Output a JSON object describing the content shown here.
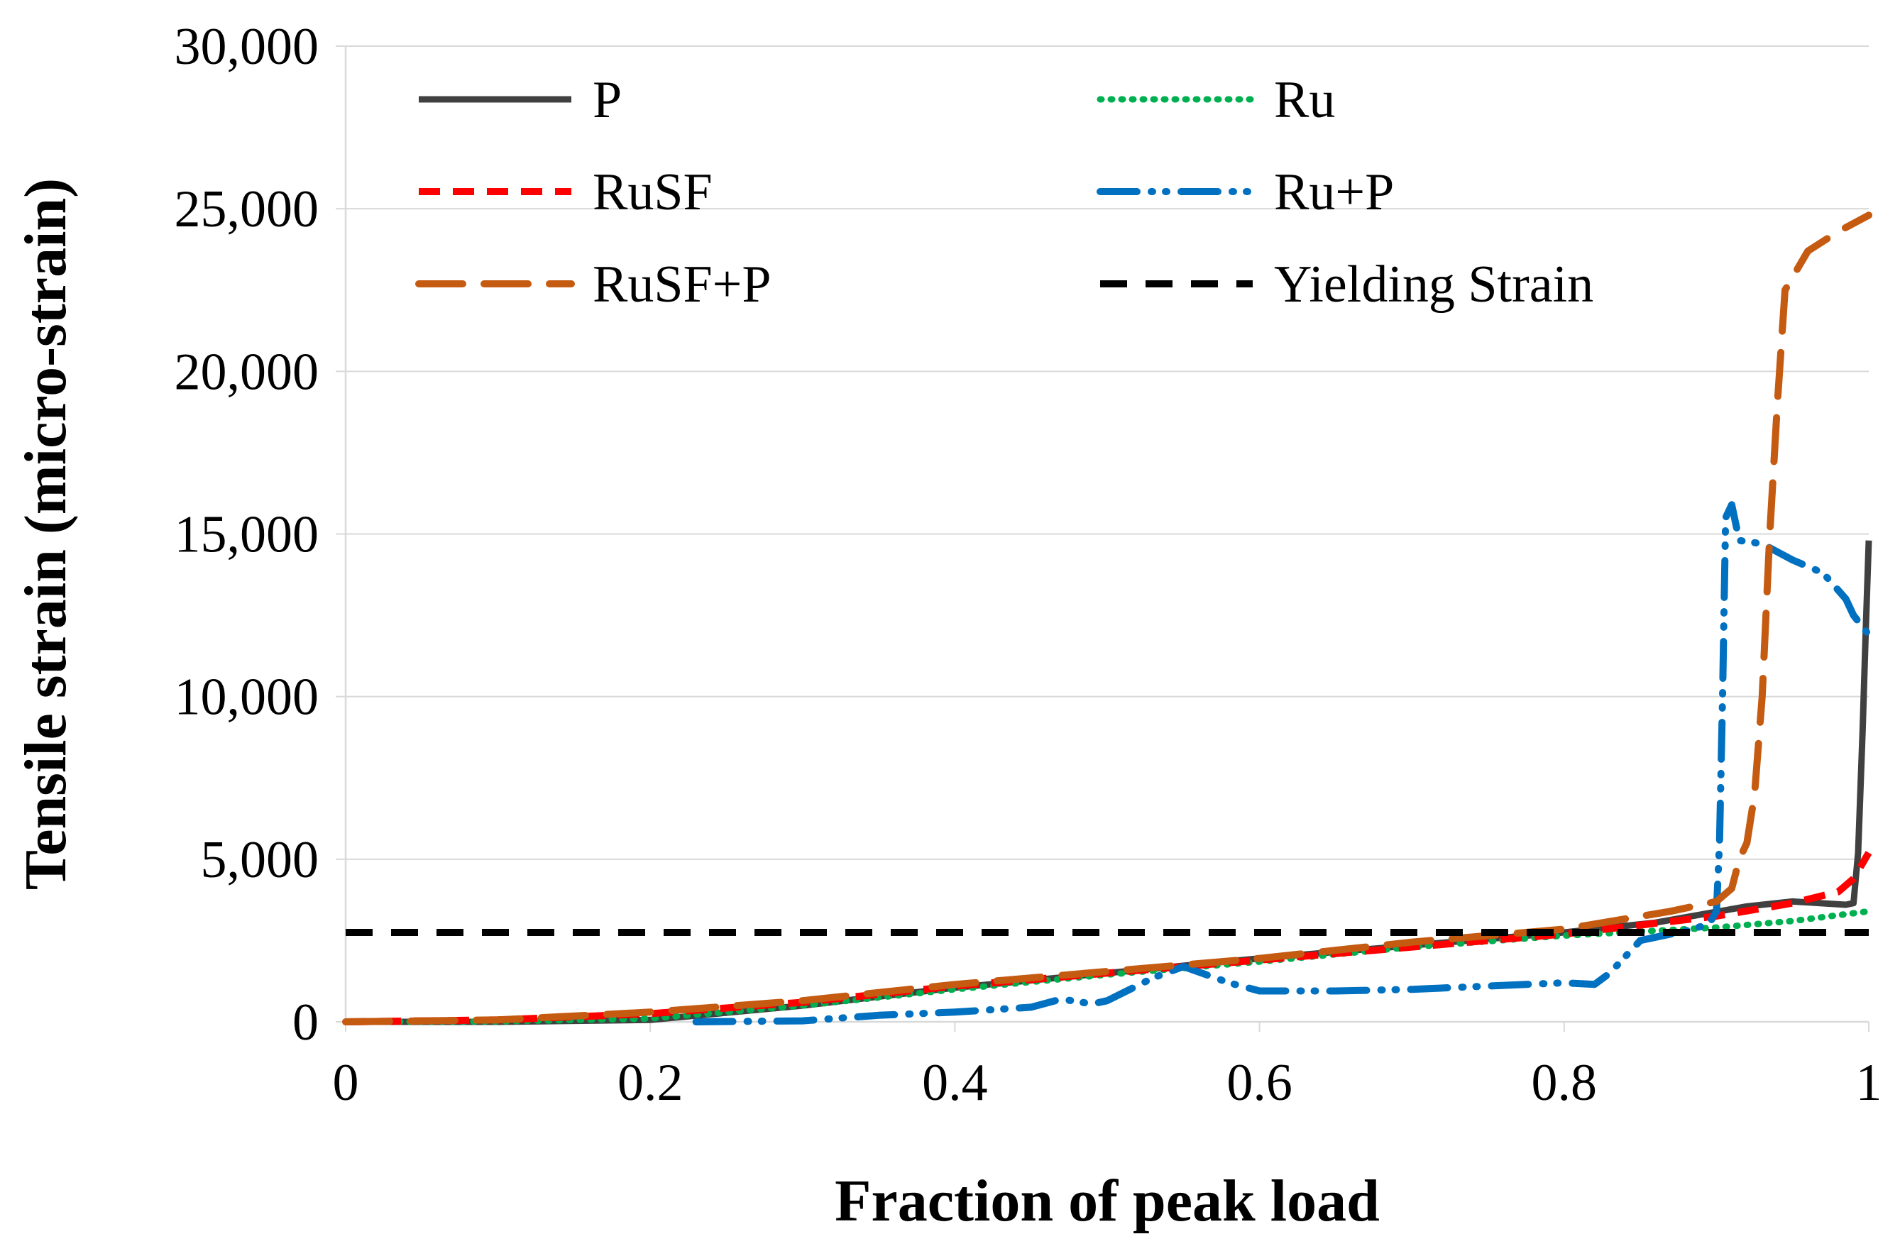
{
  "chart_data": {
    "type": "line",
    "title": "",
    "xlabel": "Fraction of peak load",
    "ylabel": "Tensile strain (micro-strain)",
    "xlim": [
      0,
      1
    ],
    "ylim": [
      0,
      30000
    ],
    "x_ticks": [
      0,
      0.2,
      0.4,
      0.6,
      0.8,
      1
    ],
    "x_tick_labels": [
      "0",
      "0.2",
      "0.4",
      "0.6",
      "0.8",
      "1"
    ],
    "y_ticks": [
      0,
      5000,
      10000,
      15000,
      20000,
      25000,
      30000
    ],
    "y_tick_labels": [
      "0",
      "5,000",
      "10,000",
      "15,000",
      "20,000",
      "25,000",
      "30,000"
    ],
    "grid": "horizontal",
    "legend_position": "top",
    "series": [
      {
        "name": "P",
        "color": "#404040",
        "style": "solid",
        "points": [
          [
            0,
            0
          ],
          [
            0.1,
            0
          ],
          [
            0.2,
            60
          ],
          [
            0.3,
            500
          ],
          [
            0.4,
            1050
          ],
          [
            0.5,
            1500
          ],
          [
            0.6,
            1950
          ],
          [
            0.7,
            2350
          ],
          [
            0.8,
            2750
          ],
          [
            0.86,
            3050
          ],
          [
            0.92,
            3550
          ],
          [
            0.95,
            3700
          ],
          [
            0.985,
            3600
          ],
          [
            0.99,
            3650
          ],
          [
            0.993,
            5200
          ],
          [
            0.996,
            9000
          ],
          [
            0.998,
            12000
          ],
          [
            1.0,
            14800
          ]
        ]
      },
      {
        "name": "Ru",
        "color": "#00B050",
        "style": "dotted",
        "points": [
          [
            0,
            0
          ],
          [
            0.1,
            10
          ],
          [
            0.2,
            100
          ],
          [
            0.3,
            500
          ],
          [
            0.4,
            1000
          ],
          [
            0.5,
            1450
          ],
          [
            0.6,
            1850
          ],
          [
            0.7,
            2300
          ],
          [
            0.8,
            2650
          ],
          [
            0.9,
            2900
          ],
          [
            0.95,
            3100
          ],
          [
            1.0,
            3400
          ]
        ]
      },
      {
        "name": "RuSF",
        "color": "#FF0000",
        "style": "dashed",
        "points": [
          [
            0,
            0
          ],
          [
            0.1,
            60
          ],
          [
            0.2,
            250
          ],
          [
            0.3,
            600
          ],
          [
            0.4,
            1100
          ],
          [
            0.5,
            1500
          ],
          [
            0.6,
            1900
          ],
          [
            0.7,
            2300
          ],
          [
            0.8,
            2700
          ],
          [
            0.9,
            3250
          ],
          [
            0.95,
            3650
          ],
          [
            0.98,
            4000
          ],
          [
            0.99,
            4400
          ],
          [
            1.0,
            5200
          ]
        ]
      },
      {
        "name": "Ru+P",
        "color": "#0070C0",
        "style": "dash-dot-dot",
        "points": [
          [
            0.23,
            0
          ],
          [
            0.3,
            30
          ],
          [
            0.35,
            200
          ],
          [
            0.4,
            300
          ],
          [
            0.45,
            450
          ],
          [
            0.47,
            700
          ],
          [
            0.49,
            550
          ],
          [
            0.5,
            650
          ],
          [
            0.53,
            1350
          ],
          [
            0.55,
            1700
          ],
          [
            0.58,
            1200
          ],
          [
            0.6,
            950
          ],
          [
            0.62,
            950
          ],
          [
            0.65,
            950
          ],
          [
            0.7,
            1000
          ],
          [
            0.75,
            1100
          ],
          [
            0.8,
            1200
          ],
          [
            0.82,
            1150
          ],
          [
            0.83,
            1500
          ],
          [
            0.85,
            2500
          ],
          [
            0.88,
            2800
          ],
          [
            0.895,
            3000
          ],
          [
            0.9,
            3400
          ],
          [
            0.902,
            5500
          ],
          [
            0.904,
            10000
          ],
          [
            0.906,
            15500
          ],
          [
            0.91,
            15900
          ],
          [
            0.915,
            14800
          ],
          [
            0.93,
            14700
          ],
          [
            0.95,
            14200
          ],
          [
            0.97,
            13800
          ],
          [
            0.985,
            13000
          ],
          [
            0.99,
            12500
          ],
          [
            1.0,
            11900
          ]
        ]
      },
      {
        "name": "RuSF+P",
        "color": "#C55A11",
        "style": "long-dash",
        "points": [
          [
            0,
            0
          ],
          [
            0.1,
            60
          ],
          [
            0.2,
            300
          ],
          [
            0.3,
            650
          ],
          [
            0.4,
            1150
          ],
          [
            0.5,
            1550
          ],
          [
            0.6,
            1950
          ],
          [
            0.7,
            2450
          ],
          [
            0.8,
            2850
          ],
          [
            0.87,
            3400
          ],
          [
            0.9,
            3700
          ],
          [
            0.91,
            4100
          ],
          [
            0.915,
            5000
          ],
          [
            0.92,
            5500
          ],
          [
            0.925,
            7000
          ],
          [
            0.93,
            10000
          ],
          [
            0.935,
            15000
          ],
          [
            0.94,
            19000
          ],
          [
            0.945,
            22500
          ],
          [
            0.96,
            23700
          ],
          [
            0.98,
            24300
          ],
          [
            1.0,
            24800
          ]
        ]
      },
      {
        "name": "Yielding Strain",
        "color": "#000000",
        "style": "dashed-thick",
        "points": [
          [
            0,
            2750
          ],
          [
            1.0,
            2750
          ]
        ]
      }
    ]
  }
}
